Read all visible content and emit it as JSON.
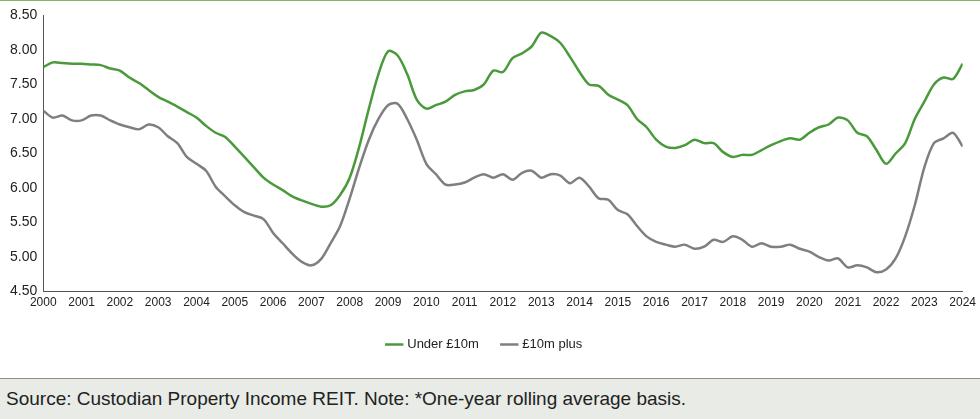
{
  "chart_data": {
    "type": "line",
    "categories": [
      "2000",
      null,
      null,
      null,
      "2001",
      null,
      null,
      null,
      "2002",
      null,
      null,
      null,
      "2003",
      null,
      null,
      null,
      "2004",
      null,
      null,
      null,
      "2005",
      null,
      null,
      null,
      "2006",
      null,
      null,
      null,
      "2007",
      null,
      null,
      null,
      "2008",
      null,
      null,
      null,
      "2009",
      null,
      null,
      null,
      "2010",
      null,
      null,
      null,
      "2011",
      null,
      null,
      null,
      "2012",
      null,
      null,
      null,
      "2013",
      null,
      null,
      null,
      "2014",
      null,
      null,
      null,
      "2015",
      null,
      null,
      null,
      "2016",
      null,
      null,
      null,
      "2017",
      null,
      null,
      null,
      "2018",
      null,
      null,
      null,
      "2019",
      null,
      null,
      null,
      "2020",
      null,
      null,
      null,
      "2021",
      null,
      null,
      null,
      "2022",
      null,
      null,
      null,
      "2023",
      null,
      null,
      null,
      "2024"
    ],
    "series": [
      {
        "name": "Under £10m",
        "color": "#4a9a3c",
        "values": [
          7.75,
          7.82,
          7.81,
          7.8,
          7.8,
          7.79,
          7.78,
          7.73,
          7.7,
          7.6,
          7.52,
          7.42,
          7.32,
          7.25,
          7.18,
          7.1,
          7.02,
          6.9,
          6.8,
          6.74,
          6.6,
          6.45,
          6.3,
          6.15,
          6.05,
          5.97,
          5.88,
          5.82,
          5.77,
          5.73,
          5.75,
          5.9,
          6.15,
          6.6,
          7.15,
          7.65,
          7.98,
          7.92,
          7.65,
          7.28,
          7.15,
          7.2,
          7.25,
          7.35,
          7.4,
          7.42,
          7.5,
          7.7,
          7.68,
          7.88,
          7.95,
          8.05,
          8.25,
          8.2,
          8.1,
          7.9,
          7.68,
          7.5,
          7.48,
          7.35,
          7.28,
          7.2,
          7.0,
          6.88,
          6.7,
          6.6,
          6.58,
          6.62,
          6.7,
          6.65,
          6.65,
          6.52,
          6.45,
          6.48,
          6.48,
          6.55,
          6.62,
          6.68,
          6.72,
          6.7,
          6.8,
          6.88,
          6.92,
          7.02,
          6.98,
          6.8,
          6.75,
          6.55,
          6.35,
          6.5,
          6.65,
          7.0,
          7.25,
          7.5,
          7.6,
          7.58,
          7.8
        ]
      },
      {
        "name": "£10m plus",
        "color": "#7f7f7f",
        "values": [
          7.12,
          7.02,
          7.05,
          6.98,
          6.98,
          7.05,
          7.05,
          6.98,
          6.92,
          6.88,
          6.85,
          6.92,
          6.88,
          6.75,
          6.65,
          6.45,
          6.35,
          6.25,
          6.02,
          5.88,
          5.75,
          5.65,
          5.6,
          5.55,
          5.35,
          5.2,
          5.05,
          4.93,
          4.88,
          4.97,
          5.2,
          5.45,
          5.85,
          6.3,
          6.7,
          7.0,
          7.2,
          7.22,
          7.0,
          6.7,
          6.35,
          6.2,
          6.05,
          6.05,
          6.08,
          6.15,
          6.2,
          6.15,
          6.2,
          6.12,
          6.22,
          6.25,
          6.15,
          6.2,
          6.18,
          6.07,
          6.15,
          6.02,
          5.85,
          5.83,
          5.68,
          5.62,
          5.45,
          5.3,
          5.22,
          5.18,
          5.15,
          5.18,
          5.12,
          5.15,
          5.25,
          5.22,
          5.3,
          5.25,
          5.15,
          5.2,
          5.15,
          5.15,
          5.18,
          5.12,
          5.08,
          5.0,
          4.95,
          4.98,
          4.85,
          4.88,
          4.85,
          4.78,
          4.82,
          4.98,
          5.3,
          5.75,
          6.3,
          6.65,
          6.72,
          6.8,
          6.6
        ]
      }
    ],
    "ylim": [
      4.5,
      8.5
    ],
    "yticks": [
      {
        "value": 4.5,
        "label": "4.50"
      },
      {
        "value": 5,
        "label": "5.00"
      },
      {
        "value": 5.5,
        "label": "5.50"
      },
      {
        "value": 6,
        "label": "6.00"
      },
      {
        "value": 6.5,
        "label": "6.50"
      },
      {
        "value": 7,
        "label": "7.00"
      },
      {
        "value": 7.5,
        "label": "7.50"
      },
      {
        "value": 8,
        "label": "8.00"
      },
      {
        "value": 8.5,
        "label": "8.50"
      }
    ],
    "grid": false,
    "legend": "bottom",
    "source": "Source: Custodian Property Income REIT. Note: *One-year rolling average basis."
  }
}
